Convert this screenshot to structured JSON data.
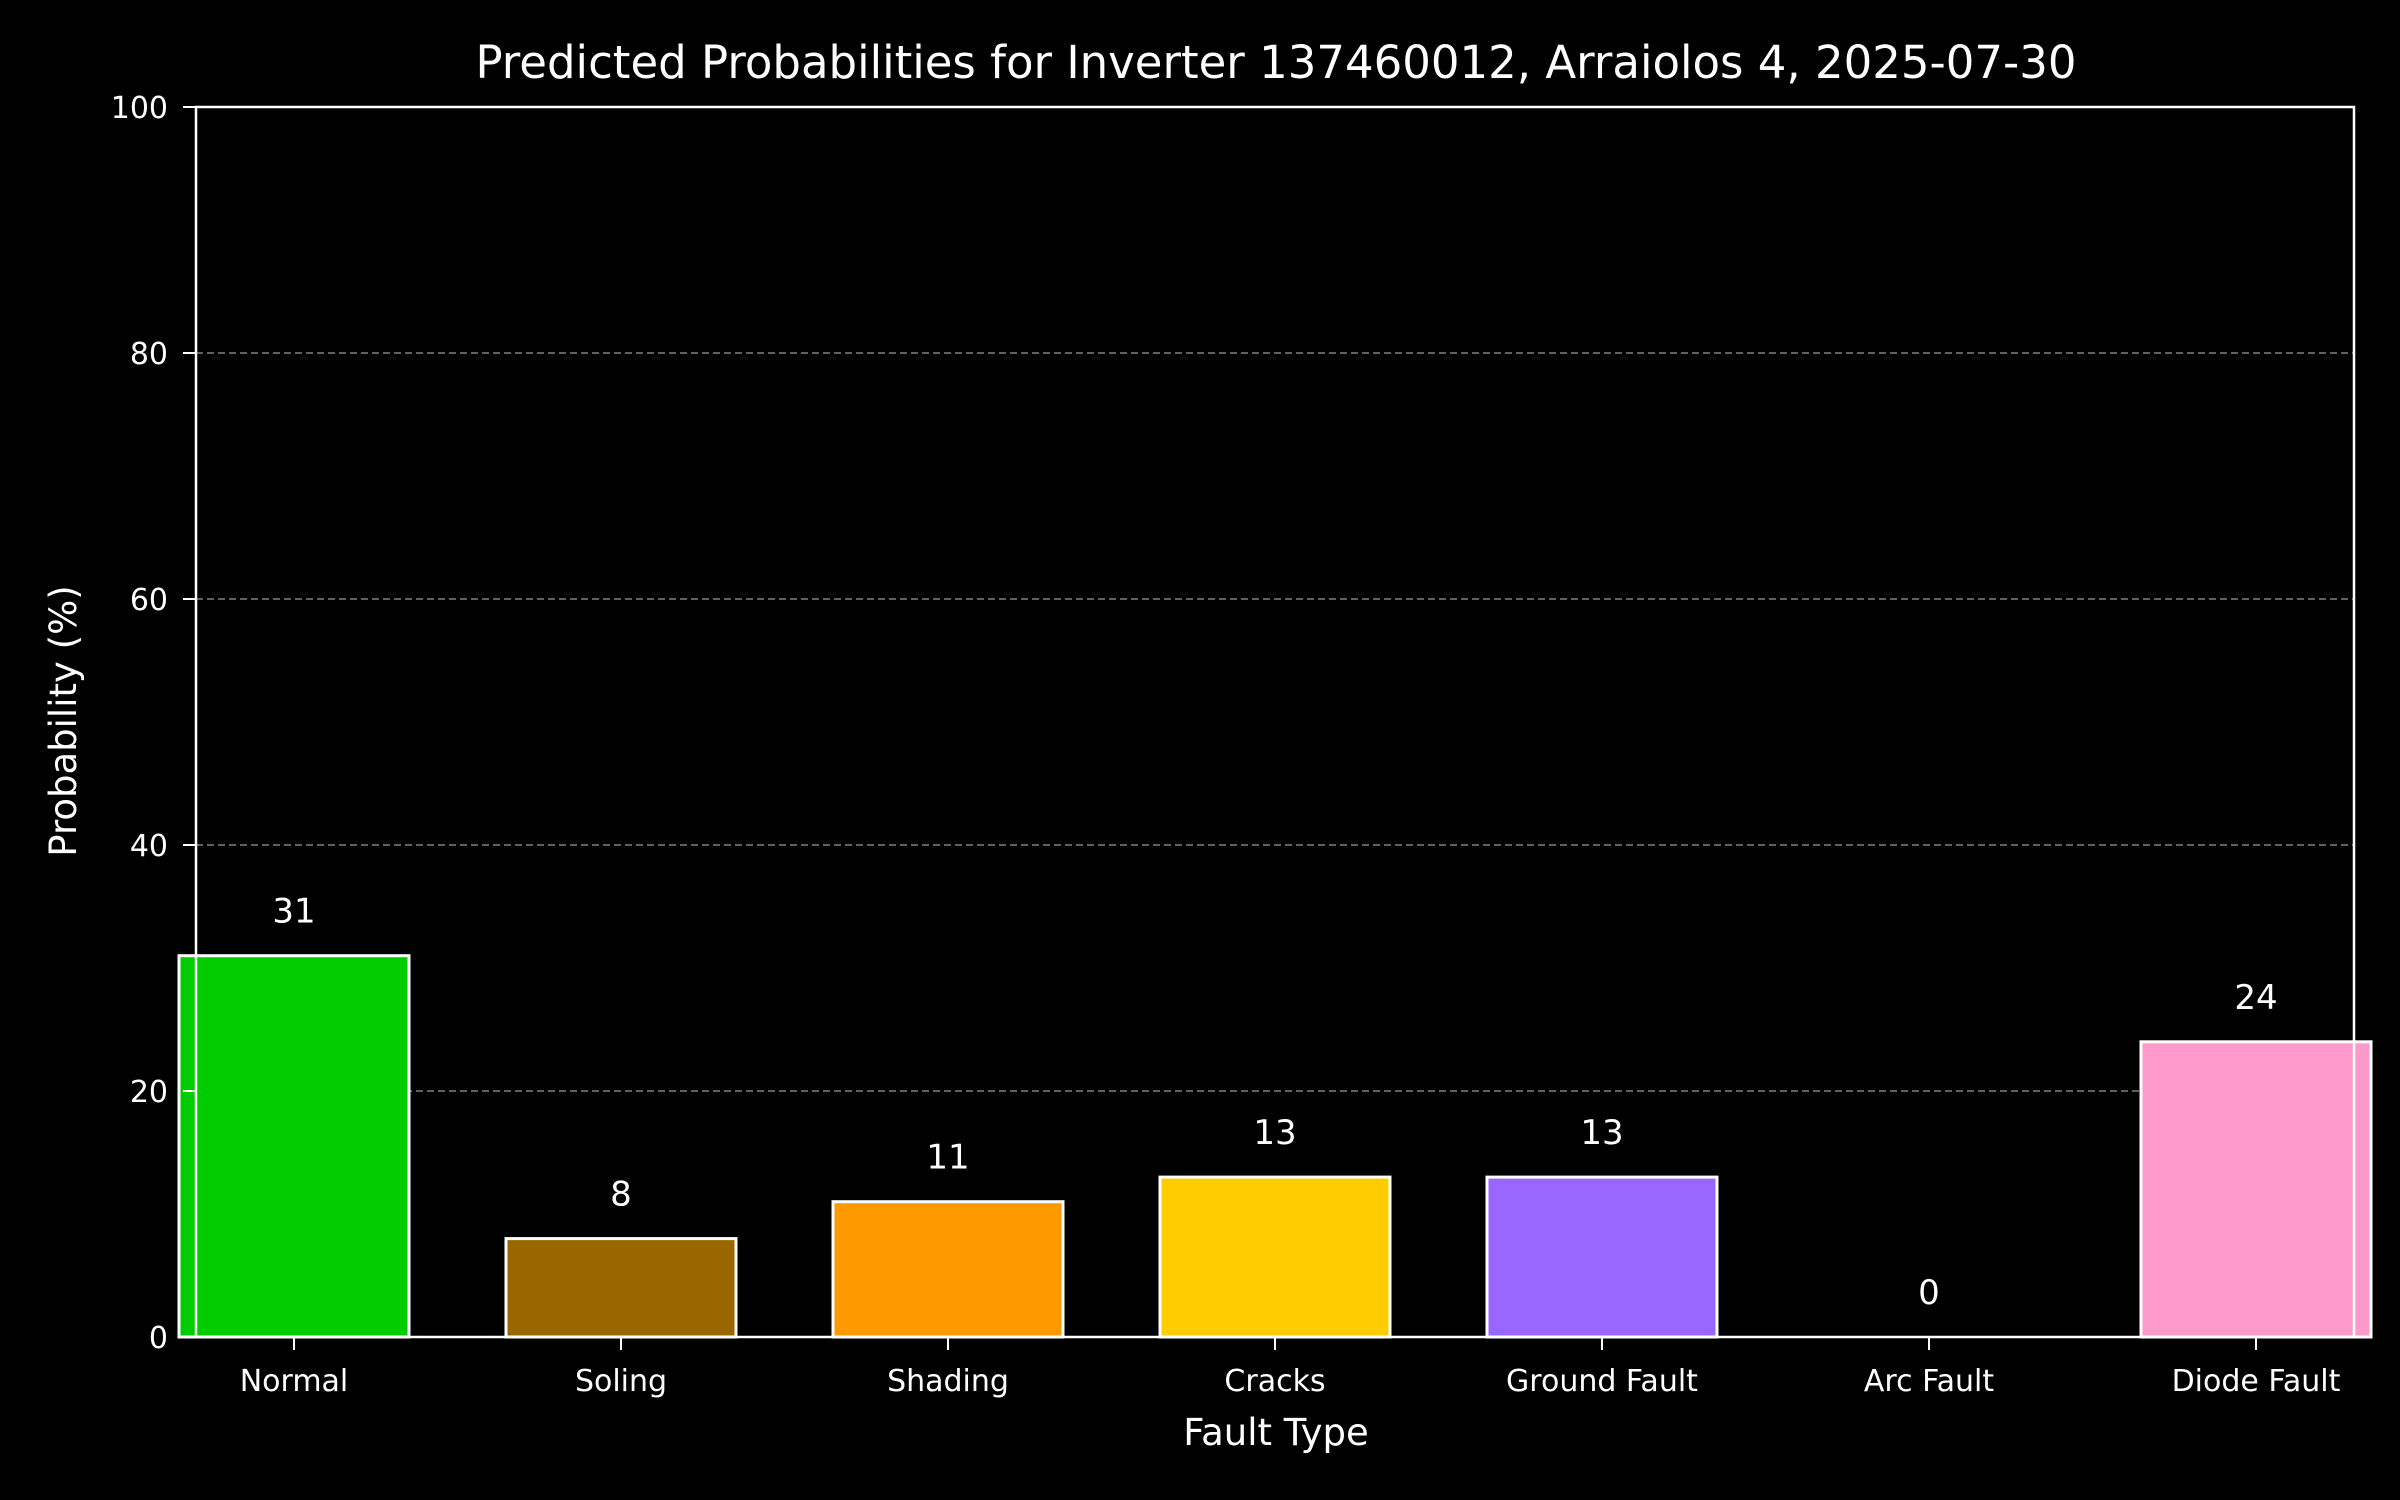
{
  "chart_data": {
    "type": "bar",
    "title": "Predicted Probabilities for Inverter 137460012, Arraiolos 4, 2025-07-30",
    "xlabel": "Fault Type",
    "ylabel": "Probability (%)",
    "categories": [
      "Normal",
      "Soling",
      "Shading",
      "Cracks",
      "Ground Fault",
      "Arc Fault",
      "Diode Fault"
    ],
    "values": [
      31,
      8,
      11,
      13,
      13,
      0,
      24
    ],
    "value_labels": [
      "31",
      "8",
      "11",
      "13",
      "13",
      "0",
      "24"
    ],
    "ylim": [
      0,
      100
    ],
    "yticks": [
      0,
      20,
      40,
      60,
      80,
      100
    ],
    "ytick_labels": [
      "0",
      "20",
      "40",
      "60",
      "80",
      "100"
    ],
    "colors": [
      "#00cc00",
      "#996600",
      "#ff9900",
      "#ffcc00",
      "#9966ff",
      "#cc0000",
      "#ff99cc"
    ],
    "bar_edge_color": "#ffffff",
    "background_color": "#000000",
    "grid": {
      "y": true,
      "x": false,
      "style": "dashed",
      "color": "#808080"
    },
    "legend": "none"
  }
}
